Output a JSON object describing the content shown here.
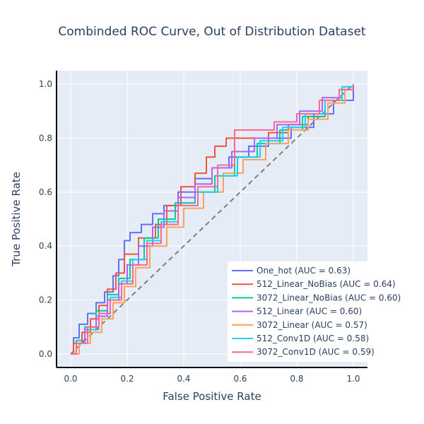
{
  "chart_data": {
    "type": "line",
    "title": "Combinded ROC Curve, Out of Distribution Dataset",
    "xlabel": "False Positive Rate",
    "ylabel": "True Positive Rate",
    "xlim": [
      -0.05,
      1.05
    ],
    "ylim": [
      -0.05,
      1.05
    ],
    "xticks": [
      "0.0",
      "0.2",
      "0.4",
      "0.6",
      "0.8",
      "1.0"
    ],
    "yticks": [
      "0.0",
      "0.2",
      "0.4",
      "0.6",
      "0.8",
      "1.0"
    ],
    "grid": true,
    "legend_position": "bottom-right",
    "colors": {
      "plot_background": "#e5ecf6",
      "grid": "#ffffff",
      "text": "#2a3f5f",
      "diagonal": "#7f7f7f"
    },
    "diagonal": {
      "x": [
        0,
        1
      ],
      "y": [
        0,
        1
      ],
      "style": "dashed"
    },
    "series": [
      {
        "name": "One_hot (AUC = 0.63)",
        "color": "#636efa",
        "x": [
          0,
          0.01,
          0.01,
          0.03,
          0.03,
          0.06,
          0.06,
          0.09,
          0.09,
          0.12,
          0.12,
          0.15,
          0.15,
          0.17,
          0.17,
          0.19,
          0.19,
          0.21,
          0.21,
          0.25,
          0.25,
          0.29,
          0.29,
          0.33,
          0.33,
          0.38,
          0.38,
          0.44,
          0.44,
          0.5,
          0.5,
          0.56,
          0.56,
          0.63,
          0.63,
          0.7,
          0.7,
          0.78,
          0.78,
          0.86,
          0.86,
          0.93,
          0.93,
          1.0,
          1.0
        ],
        "y": [
          0,
          0,
          0.06,
          0.06,
          0.11,
          0.11,
          0.15,
          0.15,
          0.19,
          0.19,
          0.23,
          0.23,
          0.29,
          0.29,
          0.35,
          0.35,
          0.42,
          0.42,
          0.45,
          0.45,
          0.48,
          0.48,
          0.52,
          0.52,
          0.55,
          0.55,
          0.6,
          0.6,
          0.65,
          0.65,
          0.69,
          0.69,
          0.73,
          0.73,
          0.77,
          0.77,
          0.8,
          0.8,
          0.84,
          0.84,
          0.89,
          0.89,
          0.94,
          0.94,
          1.0
        ]
      },
      {
        "name": "512_Linear_NoBias (AUC = 0.64)",
        "color": "#EF553B",
        "x": [
          0,
          0.01,
          0.01,
          0.04,
          0.04,
          0.07,
          0.07,
          0.1,
          0.1,
          0.13,
          0.13,
          0.16,
          0.16,
          0.19,
          0.19,
          0.24,
          0.24,
          0.3,
          0.3,
          0.34,
          0.34,
          0.39,
          0.39,
          0.44,
          0.44,
          0.48,
          0.48,
          0.51,
          0.51,
          0.55,
          0.55,
          0.64,
          0.64,
          0.7,
          0.7,
          0.77,
          0.77,
          0.84,
          0.84,
          0.9,
          0.9,
          0.96,
          0.96,
          1.0,
          1.0
        ],
        "y": [
          0,
          0,
          0.04,
          0.04,
          0.08,
          0.08,
          0.13,
          0.13,
          0.18,
          0.18,
          0.24,
          0.24,
          0.3,
          0.3,
          0.37,
          0.37,
          0.43,
          0.43,
          0.48,
          0.48,
          0.55,
          0.55,
          0.62,
          0.62,
          0.67,
          0.67,
          0.73,
          0.73,
          0.77,
          0.77,
          0.8,
          0.8,
          0.8,
          0.8,
          0.82,
          0.82,
          0.85,
          0.85,
          0.88,
          0.88,
          0.94,
          0.94,
          0.98,
          0.98,
          1.0
        ]
      },
      {
        "name": "3072_Linear_NoBias (AUC = 0.60)",
        "color": "#00cc96",
        "x": [
          0,
          0.02,
          0.02,
          0.05,
          0.05,
          0.09,
          0.09,
          0.13,
          0.13,
          0.17,
          0.17,
          0.21,
          0.21,
          0.26,
          0.26,
          0.31,
          0.31,
          0.37,
          0.37,
          0.44,
          0.44,
          0.51,
          0.51,
          0.58,
          0.58,
          0.66,
          0.66,
          0.74,
          0.74,
          0.82,
          0.82,
          0.9,
          0.9,
          0.97,
          0.97,
          1.0,
          1.0
        ],
        "y": [
          0,
          0,
          0.05,
          0.05,
          0.1,
          0.1,
          0.16,
          0.16,
          0.22,
          0.22,
          0.28,
          0.28,
          0.35,
          0.35,
          0.43,
          0.43,
          0.5,
          0.5,
          0.56,
          0.56,
          0.6,
          0.6,
          0.66,
          0.66,
          0.73,
          0.73,
          0.78,
          0.78,
          0.83,
          0.83,
          0.88,
          0.88,
          0.94,
          0.94,
          0.98,
          0.98,
          1.0
        ]
      },
      {
        "name": "512_Linear (AUC = 0.60)",
        "color": "#ab63fa",
        "x": [
          0,
          0.02,
          0.02,
          0.05,
          0.05,
          0.09,
          0.09,
          0.13,
          0.13,
          0.17,
          0.17,
          0.2,
          0.2,
          0.24,
          0.24,
          0.29,
          0.29,
          0.33,
          0.33,
          0.38,
          0.38,
          0.44,
          0.44,
          0.5,
          0.5,
          0.57,
          0.57,
          0.65,
          0.65,
          0.73,
          0.73,
          0.81,
          0.81,
          0.89,
          0.89,
          0.96,
          0.96,
          1.0,
          1.0
        ],
        "y": [
          0,
          0,
          0.04,
          0.04,
          0.09,
          0.09,
          0.14,
          0.14,
          0.2,
          0.2,
          0.26,
          0.26,
          0.33,
          0.33,
          0.4,
          0.4,
          0.47,
          0.47,
          0.53,
          0.53,
          0.58,
          0.58,
          0.63,
          0.63,
          0.69,
          0.69,
          0.75,
          0.75,
          0.8,
          0.8,
          0.85,
          0.85,
          0.9,
          0.9,
          0.95,
          0.95,
          0.99,
          0.99,
          1.0
        ]
      },
      {
        "name": "3072_Linear (AUC = 0.57)",
        "color": "#FFA15A",
        "x": [
          0,
          0.03,
          0.03,
          0.07,
          0.07,
          0.11,
          0.11,
          0.15,
          0.15,
          0.19,
          0.19,
          0.23,
          0.23,
          0.28,
          0.28,
          0.34,
          0.34,
          0.4,
          0.4,
          0.47,
          0.47,
          0.54,
          0.54,
          0.61,
          0.61,
          0.69,
          0.69,
          0.77,
          0.77,
          0.84,
          0.84,
          0.91,
          0.91,
          0.97,
          0.97,
          1.0,
          1.0
        ],
        "y": [
          0,
          0,
          0.04,
          0.04,
          0.08,
          0.08,
          0.13,
          0.13,
          0.19,
          0.19,
          0.25,
          0.25,
          0.32,
          0.32,
          0.4,
          0.4,
          0.47,
          0.47,
          0.54,
          0.54,
          0.6,
          0.6,
          0.67,
          0.67,
          0.72,
          0.72,
          0.78,
          0.78,
          0.83,
          0.83,
          0.87,
          0.87,
          0.93,
          0.93,
          0.98,
          0.98,
          1.0
        ]
      },
      {
        "name": "512_Conv1D (AUC = 0.58)",
        "color": "#19d3f3",
        "x": [
          0,
          0.02,
          0.02,
          0.06,
          0.06,
          0.1,
          0.1,
          0.14,
          0.14,
          0.18,
          0.18,
          0.22,
          0.22,
          0.27,
          0.27,
          0.32,
          0.32,
          0.38,
          0.38,
          0.45,
          0.45,
          0.52,
          0.52,
          0.59,
          0.59,
          0.67,
          0.67,
          0.75,
          0.75,
          0.83,
          0.83,
          0.9,
          0.9,
          0.96,
          0.96,
          1.0,
          1.0
        ],
        "y": [
          0,
          0,
          0.04,
          0.04,
          0.09,
          0.09,
          0.15,
          0.15,
          0.21,
          0.21,
          0.27,
          0.27,
          0.35,
          0.35,
          0.42,
          0.42,
          0.49,
          0.49,
          0.55,
          0.55,
          0.6,
          0.6,
          0.66,
          0.66,
          0.73,
          0.73,
          0.79,
          0.79,
          0.84,
          0.84,
          0.89,
          0.89,
          0.94,
          0.94,
          0.99,
          0.99,
          1.0
        ]
      },
      {
        "name": "3072_Conv1D (AUC = 0.59)",
        "color": "#FF6692",
        "x": [
          0,
          0.02,
          0.02,
          0.06,
          0.06,
          0.1,
          0.1,
          0.14,
          0.14,
          0.18,
          0.18,
          0.22,
          0.22,
          0.27,
          0.27,
          0.32,
          0.32,
          0.38,
          0.38,
          0.45,
          0.45,
          0.52,
          0.52,
          0.58,
          0.58,
          0.64,
          0.64,
          0.72,
          0.72,
          0.8,
          0.8,
          0.88,
          0.88,
          0.95,
          0.95,
          1.0,
          1.0
        ],
        "y": [
          0,
          0,
          0.04,
          0.04,
          0.1,
          0.1,
          0.15,
          0.15,
          0.2,
          0.2,
          0.26,
          0.26,
          0.33,
          0.33,
          0.41,
          0.41,
          0.48,
          0.48,
          0.55,
          0.55,
          0.62,
          0.62,
          0.7,
          0.7,
          0.83,
          0.83,
          0.83,
          0.83,
          0.86,
          0.86,
          0.89,
          0.89,
          0.94,
          0.94,
          0.98,
          0.98,
          1.0
        ]
      }
    ]
  }
}
